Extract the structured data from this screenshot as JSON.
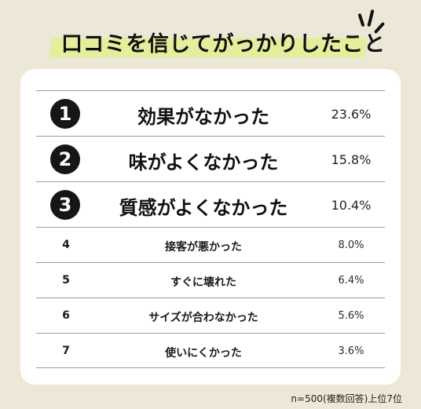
{
  "title": "口コミを信じてがっかりしたこと",
  "ranking": [
    {
      "rank": "1",
      "item": "効果がなかった",
      "percent": "23.6%"
    },
    {
      "rank": "2",
      "item": "味がよくなかった",
      "percent": "15.8%"
    },
    {
      "rank": "3",
      "item": "質感がよくなかった",
      "percent": "10.4%"
    },
    {
      "rank": "4",
      "item": "接客が悪かった",
      "percent": "8.0%"
    },
    {
      "rank": "5",
      "item": "すぐに壊れた",
      "percent": "6.4%"
    },
    {
      "rank": "6",
      "item": "サイズが合わなかった",
      "percent": "5.6%"
    },
    {
      "rank": "7",
      "item": "使いにくかった",
      "percent": "3.6%"
    }
  ],
  "footnote": "n=500(複数回答)上位7位",
  "colors": {
    "background": "#ece7d6",
    "title_highlight": "#e5ee9c",
    "card": "#ffffff",
    "rank_badge": "#161616"
  },
  "icons": {
    "title_decoration": "sparkle-lines-icon"
  }
}
